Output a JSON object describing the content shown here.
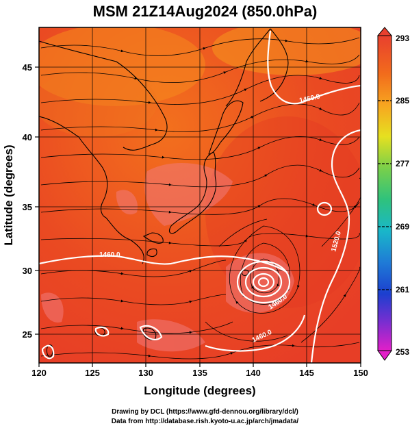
{
  "title": "MSM 21Z14Aug2024 (850.0hPa)",
  "axes": {
    "xlabel": "Longitude (degrees)",
    "ylabel": "Latitude  (degrees)",
    "x_ticks": [
      "120",
      "125",
      "130",
      "135",
      "140",
      "145",
      "150"
    ],
    "y_ticks": [
      "25",
      "30",
      "35",
      "40",
      "45"
    ],
    "xlim": [
      120,
      150
    ],
    "ylim": [
      22.4,
      47.6
    ]
  },
  "colorbar": {
    "ticks": [
      "293",
      "285",
      "277",
      "269",
      "261",
      "253"
    ],
    "range": [
      253,
      293
    ]
  },
  "contour_labels": [
    {
      "text": "1460.0",
      "lon": 146.3,
      "lat": 42.9
    },
    {
      "text": "1460.0",
      "lon": 125.8,
      "lat": 30.9
    },
    {
      "text": "1520.0",
      "lon": 147.6,
      "lat": 32.8
    },
    {
      "text": "1460.0",
      "lon": 141.9,
      "lat": 28.2
    },
    {
      "text": "1460.0",
      "lon": 144.1,
      "lat": 25.0
    }
  ],
  "credits": {
    "line1": "Drawing by DCL (https://www.gfd-dennou.org/library/dcl/)",
    "line2": "Data from http://database.rish.kyoto-u.ac.jp/arch/jmadata/"
  }
}
